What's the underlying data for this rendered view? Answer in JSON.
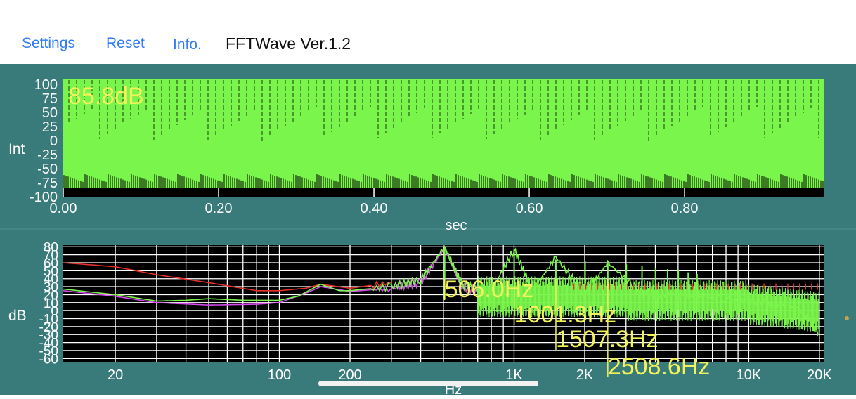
{
  "toolbar": {
    "settings_label": "Settings",
    "reset_label": "Reset",
    "info_label": "Info.",
    "app_title": "FFTWave Ver.1.2"
  },
  "colors": {
    "panel_bg": "#387b7a",
    "plot_bg": "#000000",
    "wave_green": "#7af54b",
    "annotation_yellow": "#f2f25a",
    "red_trace": "#e8322c",
    "magenta_trace": "#d84af0",
    "link_blue": "#2f7cf6"
  },
  "waveform_panel": {
    "level_readout": "85.8dB"
  },
  "spectrum_panel": {
    "peaks": [
      {
        "label": "506.0Hz"
      },
      {
        "label": "1001.3Hz"
      },
      {
        "label": "1507.3Hz"
      },
      {
        "label": "2508.6Hz"
      }
    ]
  },
  "chart_data": [
    {
      "type": "line",
      "ylabel": "Int",
      "xlabel": "sec",
      "ylim": [
        -100,
        110
      ],
      "xlim": [
        0.0,
        0.98
      ],
      "yticks": [
        "100",
        "75",
        "50",
        "25",
        "0",
        "-25",
        "-50",
        "-75",
        "-100"
      ],
      "ytick_values": [
        100,
        75,
        50,
        25,
        0,
        -25,
        -50,
        -75,
        -100
      ],
      "xticks": [
        "0.00",
        "0.20",
        "0.40",
        "0.60",
        "0.80"
      ],
      "xtick_values": [
        0.0,
        0.2,
        0.4,
        0.6,
        0.8
      ],
      "signal_range": [
        -85,
        110
      ],
      "series": [
        {
          "name": "",
          "color": "#7af54b",
          "description": "dense periodic waveform"
        }
      ],
      "grid": true
    },
    {
      "type": "line",
      "ylabel": "dB",
      "xlabel": "Hz",
      "x_scale": "log",
      "ylim": [
        -65,
        82
      ],
      "xlim": [
        12,
        21000
      ],
      "yticks": [
        "80",
        "70",
        "60",
        "50",
        "40",
        "30",
        "20",
        "10",
        "0",
        "-10",
        "-20",
        "-30",
        "-40",
        "-50",
        "-60"
      ],
      "ytick_values": [
        80,
        70,
        60,
        50,
        40,
        30,
        20,
        10,
        0,
        -10,
        -20,
        -30,
        -40,
        -50,
        -60
      ],
      "xticks": [
        "20",
        "100",
        "200",
        "1K",
        "2K",
        "10K",
        "20K"
      ],
      "xtick_values": [
        20,
        100,
        200,
        1000,
        2000,
        10000,
        20000
      ],
      "grid": true,
      "series": [
        {
          "name": "",
          "color": "#e8322c",
          "x": [
            12,
            20,
            30,
            50,
            80,
            100,
            130,
            150,
            200,
            300
          ],
          "values": [
            60,
            55,
            45,
            35,
            25,
            25,
            28,
            33,
            28,
            35
          ]
        },
        {
          "name": "",
          "color": "#d84af0",
          "x": [
            12,
            20,
            30,
            50,
            80,
            100,
            130,
            150,
            200,
            300,
            400,
            506,
            600,
            800
          ],
          "values": [
            25,
            18,
            10,
            7,
            8,
            10,
            22,
            30,
            24,
            28,
            35,
            78,
            30,
            20
          ]
        },
        {
          "name": "",
          "color": "#7af54b",
          "x": [
            12,
            20,
            30,
            40,
            50,
            70,
            100,
            120,
            150,
            180,
            200,
            300,
            400,
            506,
            600,
            800,
            1001,
            1200,
            1507,
            2000,
            2508,
            3500,
            5000,
            8000,
            12000,
            16000,
            20000
          ],
          "values": [
            27,
            20,
            12,
            13,
            15,
            13,
            13,
            18,
            33,
            25,
            25,
            30,
            38,
            80,
            32,
            25,
            77,
            25,
            67,
            20,
            60,
            22,
            20,
            15,
            10,
            5,
            -28
          ],
          "peaks_hz": [
            506,
            1001,
            1507,
            2008,
            2508,
            3010,
            3510,
            4010,
            4510,
            5010,
            5520,
            6020
          ]
        }
      ]
    }
  ]
}
